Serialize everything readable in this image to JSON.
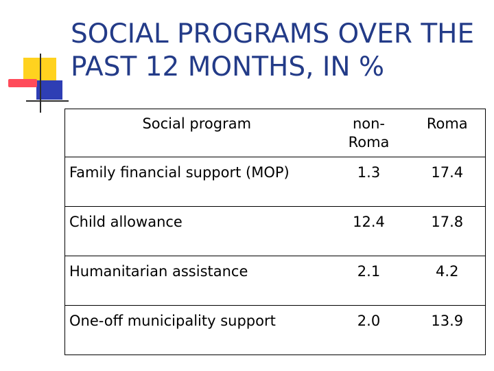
{
  "title": {
    "line1": "SOCIAL PROGRAMS OVER THE",
    "line2": "PAST 12 MONTHS, IN %"
  },
  "table": {
    "headers": {
      "program": "Social program",
      "non_roma_line1": "non-",
      "non_roma_line2": "Roma",
      "roma": "Roma"
    },
    "rows": [
      {
        "program": "Family financial support (MOP)",
        "non_roma": "1.3",
        "roma": "17.4"
      },
      {
        "program": "Child allowance",
        "non_roma": "12.4",
        "roma": "17.8"
      },
      {
        "program": "Humanitarian assistance",
        "non_roma": "2.1",
        "roma": "4.2"
      },
      {
        "program": "One-off municipality support",
        "non_roma": "2.0",
        "roma": "13.9"
      }
    ]
  },
  "colors": {
    "title": "#233b88",
    "accent_yellow": "#ffd21f",
    "accent_blue": "#2e3eb4",
    "accent_red": "#ff4b5a"
  }
}
